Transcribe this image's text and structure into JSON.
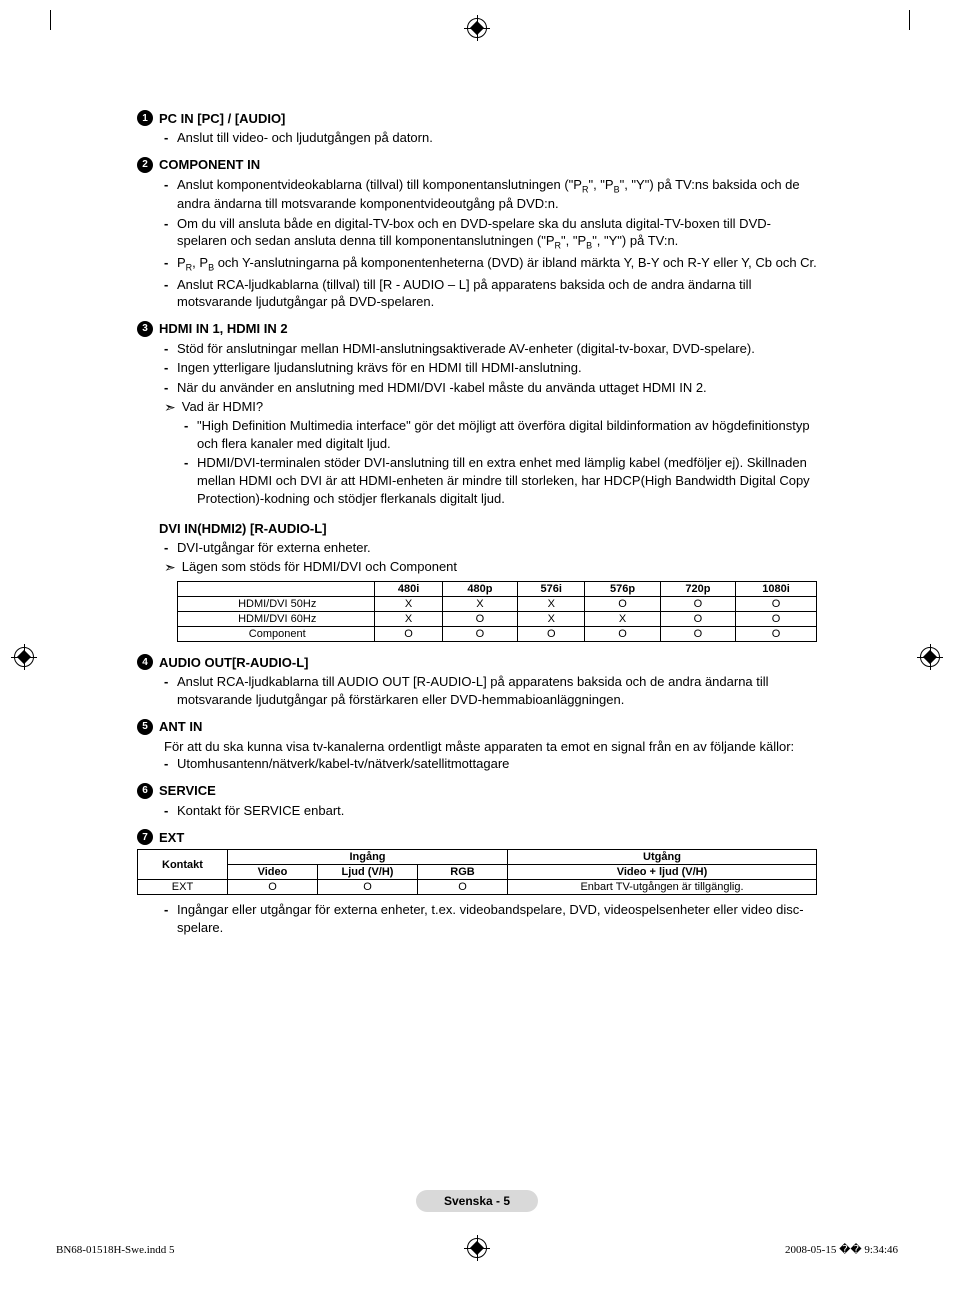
{
  "sections": [
    {
      "num": "1",
      "title": "PC IN [PC] / [AUDIO]",
      "items": [
        "Anslut till video- och ljudutgången på datorn."
      ]
    },
    {
      "num": "2",
      "title": "COMPONENT IN",
      "items": [
        "Anslut komponentvideokablarna (tillval) till komponentanslutningen (\"P<sub>R</sub>\", \"P<sub>B</sub>\", \"Y\") på TV:ns baksida och de andra ändarna till motsvarande komponentvideoutgång på DVD:n.",
        "Om du vill ansluta både en digital-TV-box och en DVD-spelare ska du ansluta digital-TV-boxen till DVD-spelaren och sedan ansluta denna till komponentanslutningen (\"P<sub>R</sub>\", \"P<sub>B</sub>\", \"Y\") på TV:n.",
        "P<sub>R</sub>, P<sub>B</sub> och Y-anslutningarna på komponentenheterna (DVD) är ibland märkta Y, B-Y och R-Y eller Y, Cb och Cr.",
        "Anslut RCA-ljudkablarna (tillval) till [R - AUDIO – L] på apparatens baksida och de andra ändarna till motsvarande ljudutgångar på DVD-spelaren."
      ]
    },
    {
      "num": "3",
      "title": "HDMI IN 1, HDMI IN 2",
      "items": [
        "Stöd för anslutningar mellan HDMI-anslutningsaktiverade AV-enheter (digital-tv-boxar, DVD-spelare).",
        "Ingen ytterligare ljudanslutning krävs för en HDMI till HDMI-anslutning.",
        "När du använder en anslutning med HDMI/DVI -kabel måste du använda uttaget HDMI IN 2."
      ],
      "arrow": "Vad är HDMI?",
      "sub": [
        "\"High Definition Multimedia interface\" gör det möjligt att överföra digital bildinformation av högdefinitionstyp och flera kanaler med digitalt ljud.",
        "HDMI/DVI-terminalen stöder DVI-anslutning till en extra enhet med lämplig kabel (medföljer ej). Skillnaden mellan HDMI och DVI är att HDMI-enheten är mindre till storleken, har HDCP(High Bandwidth Digital Copy Protection)-kodning och stödjer flerkanals digitalt ljud."
      ],
      "subheading": "DVI IN(HDMI2) [R-AUDIO-L]",
      "subitems": [
        "DVI-utgångar för externa enheter."
      ],
      "arrow2": "Lägen som stöds för HDMI/DVI och Component"
    },
    {
      "num": "4",
      "title": "AUDIO OUT[R-AUDIO-L]",
      "items": [
        "Anslut RCA-ljudkablarna till AUDIO OUT [R-AUDIO-L] på apparatens baksida och de andra ändarna till motsvarande ljudutgångar på förstärkaren eller DVD-hemmabioanläggningen."
      ]
    },
    {
      "num": "5",
      "title": "ANT IN",
      "plain": "För att du ska kunna visa tv-kanalerna ordentligt måste apparaten ta emot en signal från en av följande källor:",
      "items": [
        "Utomhusantenn/nätverk/kabel-tv/nätverk/satellitmottagare"
      ]
    },
    {
      "num": "6",
      "title": "SERVICE",
      "items": [
        "Kontakt för SERVICE enbart."
      ]
    },
    {
      "num": "7",
      "title": "EXT",
      "after": "Ingångar eller utgångar för externa enheter, t.ex. videobandspelare, DVD, videospelsenheter eller video disc-spelare."
    }
  ],
  "modes_table": {
    "columns": [
      "",
      "480i",
      "480p",
      "576i",
      "576p",
      "720p",
      "1080i"
    ],
    "rows": [
      [
        "HDMI/DVI 50Hz",
        "X",
        "X",
        "X",
        "O",
        "O",
        "O"
      ],
      [
        "HDMI/DVI 60Hz",
        "X",
        "O",
        "X",
        "X",
        "O",
        "O"
      ],
      [
        "Component",
        "O",
        "O",
        "O",
        "O",
        "O",
        "O"
      ]
    ]
  },
  "ext_table": {
    "header1": [
      "Kontakt",
      "Ingång",
      "Utgång"
    ],
    "header2": [
      "Video",
      "Ljud (V/H)",
      "RGB",
      "Video + ljud (V/H)"
    ],
    "row": [
      "EXT",
      "O",
      "O",
      "O",
      "Enbart TV-utgången är tillgänglig."
    ]
  },
  "footer_badge": "Svenska - 5",
  "footer_left": "BN68-01518H-Swe.indd   5",
  "footer_right": "2008-05-15   �� 9:34:46"
}
